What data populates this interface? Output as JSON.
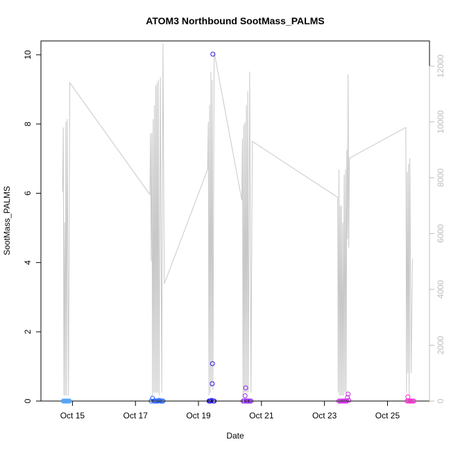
{
  "chart_data": {
    "type": "scatter",
    "title": "ATOM3 Northbound SootMass_PALMS",
    "xlabel": "Date",
    "ylabel": "SootMass_PALMS",
    "x_range": [
      "2017-10-14 00:00",
      "2017-10-26 08:00"
    ],
    "y_range": [
      0,
      10.4
    ],
    "y2_range": [
      0,
      12900
    ],
    "x_ticks": [
      {
        "date": "2017-10-15 00:00",
        "label": "Oct 15"
      },
      {
        "date": "2017-10-17 00:00",
        "label": "Oct 17"
      },
      {
        "date": "2017-10-19 00:00",
        "label": "Oct 19"
      },
      {
        "date": "2017-10-21 00:00",
        "label": "Oct 21"
      },
      {
        "date": "2017-10-23 00:00",
        "label": "Oct 23"
      },
      {
        "date": "2017-10-25 00:00",
        "label": "Oct 25"
      }
    ],
    "y_ticks": [
      {
        "value": 0,
        "label": "0"
      },
      {
        "value": 2,
        "label": "2"
      },
      {
        "value": 4,
        "label": "4"
      },
      {
        "value": 6,
        "label": "6"
      },
      {
        "value": 8,
        "label": "8"
      },
      {
        "value": 10,
        "label": "10"
      }
    ],
    "y2_ticks": [
      {
        "value": 0,
        "label": "0"
      },
      {
        "value": 2000,
        "label": "2000"
      },
      {
        "value": 4000,
        "label": "4000"
      },
      {
        "value": 6000,
        "label": "6000"
      },
      {
        "value": 8000,
        "label": "8000"
      },
      {
        "value": 10000,
        "label": "10000"
      },
      {
        "value": 12000,
        "label": "12000"
      }
    ],
    "grid": false,
    "series": [
      {
        "color": "#4da6ff",
        "points": [
          [
            "2017-10-14 17:00",
            0.0
          ],
          [
            "2017-10-14 17:40",
            0.0
          ],
          [
            "2017-10-14 18:20",
            0.0
          ],
          [
            "2017-10-14 19:00",
            0.0
          ],
          [
            "2017-10-14 19:40",
            0.0
          ],
          [
            "2017-10-14 20:20",
            0.0
          ],
          [
            "2017-10-14 21:00",
            0.0
          ],
          [
            "2017-10-14 21:40",
            0.0
          ]
        ]
      },
      {
        "color": "#1f5cff",
        "points": [
          [
            "2017-10-17 12:00",
            0.0
          ],
          [
            "2017-10-17 13:00",
            0.08
          ],
          [
            "2017-10-17 14:00",
            0.0
          ],
          [
            "2017-10-17 15:00",
            0.0
          ],
          [
            "2017-10-17 16:00",
            0.0
          ],
          [
            "2017-10-17 17:00",
            0.0
          ],
          [
            "2017-10-17 18:00",
            0.02
          ],
          [
            "2017-10-17 19:00",
            0.0
          ],
          [
            "2017-10-17 20:00",
            0.0
          ],
          [
            "2017-10-17 21:00",
            0.0
          ]
        ]
      },
      {
        "color": "#2a18e0",
        "points": [
          [
            "2017-10-19 08:00",
            0.0
          ],
          [
            "2017-10-19 08:40",
            0.0
          ],
          [
            "2017-10-19 09:20",
            0.0
          ],
          [
            "2017-10-19 10:00",
            0.02
          ],
          [
            "2017-10-19 10:30",
            0.5
          ],
          [
            "2017-10-19 10:40",
            1.08
          ],
          [
            "2017-10-19 11:00",
            10.02
          ],
          [
            "2017-10-19 11:20",
            0.0
          ],
          [
            "2017-10-19 12:00",
            0.0
          ]
        ]
      },
      {
        "color": "#8a1ee8",
        "points": [
          [
            "2017-10-20 10:00",
            0.0
          ],
          [
            "2017-10-20 11:00",
            0.0
          ],
          [
            "2017-10-20 11:30",
            0.15
          ],
          [
            "2017-10-20 12:00",
            0.38
          ],
          [
            "2017-10-20 12:30",
            0.0
          ],
          [
            "2017-10-20 13:00",
            0.0
          ],
          [
            "2017-10-20 14:00",
            0.0
          ],
          [
            "2017-10-20 15:00",
            0.0
          ],
          [
            "2017-10-20 16:00",
            0.0
          ]
        ]
      },
      {
        "color": "#cc22e6",
        "points": [
          [
            "2017-10-23 11:00",
            0.0
          ],
          [
            "2017-10-23 12:00",
            0.0
          ],
          [
            "2017-10-23 13:00",
            0.0
          ],
          [
            "2017-10-23 14:00",
            0.0
          ],
          [
            "2017-10-23 15:00",
            0.0
          ],
          [
            "2017-10-23 16:00",
            0.0
          ],
          [
            "2017-10-23 17:00",
            0.0
          ],
          [
            "2017-10-23 17:30",
            0.1
          ],
          [
            "2017-10-23 18:00",
            0.2
          ],
          [
            "2017-10-23 18:30",
            0.02
          ]
        ]
      },
      {
        "color": "#ff1fd0",
        "points": [
          [
            "2017-10-25 15:00",
            0.0
          ],
          [
            "2017-10-25 15:30",
            0.12
          ],
          [
            "2017-10-25 16:00",
            0.0
          ],
          [
            "2017-10-25 17:00",
            0.0
          ],
          [
            "2017-10-25 18:00",
            0.0
          ],
          [
            "2017-10-25 19:00",
            0.0
          ],
          [
            "2017-10-25 20:00",
            0.0
          ]
        ]
      }
    ],
    "y2_series": {
      "color": "#c8c8c8",
      "points": [
        [
          "2017-10-14 16:30",
          7500
        ],
        [
          "2017-10-14 17:00",
          9800
        ],
        [
          "2017-10-14 17:30",
          200
        ],
        [
          "2017-10-14 18:00",
          6400
        ],
        [
          "2017-10-14 18:30",
          200
        ],
        [
          "2017-10-14 19:00",
          10000
        ],
        [
          "2017-10-14 19:30",
          200
        ],
        [
          "2017-10-14 20:00",
          10100
        ],
        [
          "2017-10-14 21:00",
          200
        ],
        [
          "2017-10-14 22:00",
          11400
        ],
        [
          "2017-10-17 11:00",
          7400
        ],
        [
          "2017-10-17 11:30",
          9600
        ],
        [
          "2017-10-17 12:00",
          5000
        ],
        [
          "2017-10-17 12:30",
          9600
        ],
        [
          "2017-10-17 13:00",
          200
        ],
        [
          "2017-10-17 13:30",
          10100
        ],
        [
          "2017-10-17 14:00",
          300
        ],
        [
          "2017-10-17 14:30",
          10600
        ],
        [
          "2017-10-17 15:00",
          300
        ],
        [
          "2017-10-17 15:30",
          11300
        ],
        [
          "2017-10-17 16:00",
          300
        ],
        [
          "2017-10-17 16:30",
          11400
        ],
        [
          "2017-10-17 17:00",
          300
        ],
        [
          "2017-10-17 17:30",
          11500
        ],
        [
          "2017-10-17 18:00",
          200
        ],
        [
          "2017-10-17 19:00",
          11600
        ],
        [
          "2017-10-17 20:00",
          300
        ],
        [
          "2017-10-17 21:00",
          12800
        ],
        [
          "2017-10-17 22:00",
          4200
        ],
        [
          "2017-10-19 07:00",
          8300
        ],
        [
          "2017-10-19 07:30",
          10000
        ],
        [
          "2017-10-19 08:00",
          200
        ],
        [
          "2017-10-19 08:30",
          10600
        ],
        [
          "2017-10-19 09:00",
          300
        ],
        [
          "2017-10-19 09:30",
          11800
        ],
        [
          "2017-10-19 10:00",
          500
        ],
        [
          "2017-10-19 10:30",
          11500
        ],
        [
          "2017-10-19 11:00",
          400
        ],
        [
          "2017-10-19 12:00",
          12500
        ],
        [
          "2017-10-20 09:00",
          7200
        ],
        [
          "2017-10-20 09:30",
          9400
        ],
        [
          "2017-10-20 10:00",
          200
        ],
        [
          "2017-10-20 10:30",
          9900
        ],
        [
          "2017-10-20 11:00",
          300
        ],
        [
          "2017-10-20 11:30",
          10000
        ],
        [
          "2017-10-20 12:00",
          300
        ],
        [
          "2017-10-20 12:30",
          10600
        ],
        [
          "2017-10-20 13:00",
          300
        ],
        [
          "2017-10-20 13:30",
          11100
        ],
        [
          "2017-10-20 14:00",
          300
        ],
        [
          "2017-10-20 15:00",
          11800
        ],
        [
          "2017-10-20 16:00",
          300
        ],
        [
          "2017-10-20 17:00",
          9300
        ],
        [
          "2017-10-23 10:00",
          7300
        ],
        [
          "2017-10-23 10:30",
          300
        ],
        [
          "2017-10-23 11:00",
          8300
        ],
        [
          "2017-10-23 11:30",
          200
        ],
        [
          "2017-10-23 12:00",
          7000
        ],
        [
          "2017-10-23 12:30",
          200
        ],
        [
          "2017-10-23 13:00",
          7000
        ],
        [
          "2017-10-23 13:30",
          200
        ],
        [
          "2017-10-23 14:00",
          6400
        ],
        [
          "2017-10-23 14:30",
          200
        ],
        [
          "2017-10-23 15:00",
          8100
        ],
        [
          "2017-10-23 15:30",
          300
        ],
        [
          "2017-10-23 16:00",
          8300
        ],
        [
          "2017-10-23 16:30",
          300
        ],
        [
          "2017-10-23 17:00",
          9000
        ],
        [
          "2017-10-23 17:30",
          5800
        ],
        [
          "2017-10-23 18:00",
          11700
        ],
        [
          "2017-10-23 18:30",
          5500
        ],
        [
          "2017-10-23 19:00",
          8700
        ],
        [
          "2017-10-25 14:00",
          9800
        ],
        [
          "2017-10-25 14:30",
          300
        ],
        [
          "2017-10-25 15:00",
          8200
        ],
        [
          "2017-10-25 15:30",
          1000
        ],
        [
          "2017-10-25 16:00",
          8500
        ],
        [
          "2017-10-25 16:30",
          200
        ],
        [
          "2017-10-25 17:00",
          8700
        ],
        [
          "2017-10-25 18:00",
          1000
        ],
        [
          "2017-10-25 19:00",
          5100
        ]
      ]
    }
  }
}
